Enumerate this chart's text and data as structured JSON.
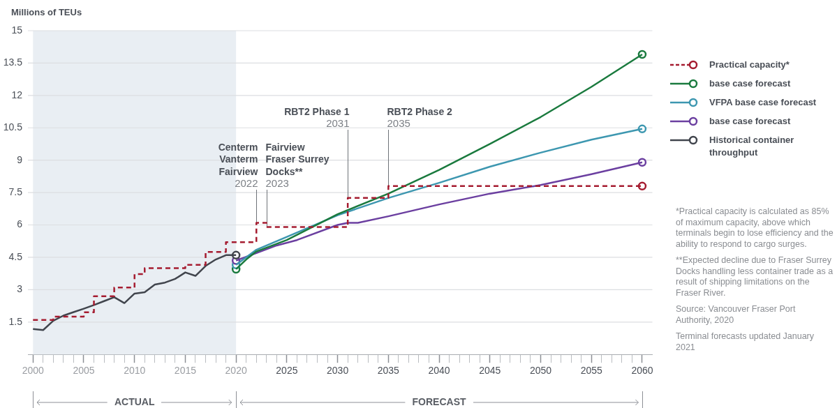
{
  "chart_data": {
    "type": "line",
    "ylabel": "Millions of TEUs",
    "xlim": [
      1999.5,
      2061
    ],
    "ylim": [
      0,
      15
    ],
    "xticks": [
      2000,
      {
        "value": 2001,
        "label": null
      },
      {
        "value": 2002,
        "label": null
      },
      {
        "value": 2003,
        "label": null
      },
      {
        "value": 2004,
        "label": null
      },
      2005,
      {
        "value": 2006,
        "label": null
      },
      {
        "value": 2007,
        "label": null
      },
      {
        "value": 2008,
        "label": null
      },
      {
        "value": 2009,
        "label": null
      },
      2010,
      {
        "value": 2011,
        "label": null
      },
      {
        "value": 2012,
        "label": null
      },
      {
        "value": 2013,
        "label": null
      },
      {
        "value": 2014,
        "label": null
      },
      2015,
      {
        "value": 2016,
        "label": null
      },
      {
        "value": 2017,
        "label": null
      },
      {
        "value": 2018,
        "label": null
      },
      {
        "value": 2019,
        "label": null
      },
      2020,
      {
        "value": 2021,
        "label": null
      },
      {
        "value": 2022,
        "label": null
      },
      {
        "value": 2023,
        "label": null
      },
      {
        "value": 2024,
        "label": null
      },
      2025,
      {
        "value": 2026,
        "label": null
      },
      {
        "value": 2027,
        "label": null
      },
      {
        "value": 2028,
        "label": null
      },
      {
        "value": 2029,
        "label": null
      },
      2030,
      {
        "value": 2031,
        "label": null
      },
      {
        "value": 2032,
        "label": null
      },
      {
        "value": 2033,
        "label": null
      },
      {
        "value": 2034,
        "label": null
      },
      2035,
      {
        "value": 2036,
        "label": null
      },
      {
        "value": 2037,
        "label": null
      },
      {
        "value": 2038,
        "label": null
      },
      {
        "value": 2039,
        "label": null
      },
      2040,
      {
        "value": 2041,
        "label": null
      },
      {
        "value": 2042,
        "label": null
      },
      {
        "value": 2043,
        "label": null
      },
      {
        "value": 2044,
        "label": null
      },
      2045,
      {
        "value": 2046,
        "label": null
      },
      {
        "value": 2047,
        "label": null
      },
      {
        "value": 2048,
        "label": null
      },
      {
        "value": 2049,
        "label": null
      },
      2050,
      {
        "value": 2051,
        "label": null
      },
      {
        "value": 2052,
        "label": null
      },
      {
        "value": 2053,
        "label": null
      },
      {
        "value": 2054,
        "label": null
      },
      2055,
      {
        "value": 2056,
        "label": null
      },
      {
        "value": 2057,
        "label": null
      },
      {
        "value": 2058,
        "label": null
      },
      {
        "value": 2059,
        "label": null
      },
      2060
    ],
    "yticks": [
      1.5,
      3,
      4.5,
      6,
      7.5,
      9,
      10.5,
      12,
      13.5,
      15
    ],
    "grid": "y",
    "legend": "right",
    "series": [
      {
        "name": "Practical capacity*",
        "type": "step",
        "line_style": "dashed",
        "color": "#a51c30",
        "x": [
          2000,
          2002,
          2005,
          2006,
          2008,
          2010,
          2011,
          2015,
          2017,
          2019,
          2022,
          2023,
          2031,
          2035,
          2060
        ],
        "values": [
          1.6,
          1.75,
          1.95,
          2.7,
          3.1,
          3.72,
          4.0,
          4.15,
          4.75,
          5.2,
          6.1,
          5.9,
          7.25,
          7.8,
          7.8
        ]
      },
      {
        "name": "base case forecast",
        "color": "#1a7a3e",
        "x": [
          2020,
          2021,
          2022,
          2025,
          2030,
          2035,
          2040,
          2045,
          2050,
          2055,
          2060
        ],
        "values": [
          3.95,
          4.4,
          4.77,
          5.3,
          6.5,
          7.45,
          8.55,
          9.75,
          11.0,
          12.4,
          13.9
        ]
      },
      {
        "name": "VFPA base case forecast",
        "color": "#3d97b0",
        "x": [
          2020,
          2022,
          2025,
          2030,
          2035,
          2040,
          2045,
          2050,
          2055,
          2060
        ],
        "values": [
          4.15,
          4.85,
          5.45,
          6.45,
          7.25,
          7.95,
          8.7,
          9.35,
          9.95,
          10.45
        ]
      },
      {
        "name": "base case forecast",
        "color": "#6b3fa0",
        "x": [
          2020,
          2022,
          2024,
          2026,
          2030,
          2031,
          2032,
          2035,
          2040,
          2045,
          2050,
          2055,
          2060
        ],
        "values": [
          4.35,
          4.7,
          5.05,
          5.3,
          6.0,
          6.1,
          6.1,
          6.4,
          6.95,
          7.45,
          7.85,
          8.35,
          8.9
        ]
      },
      {
        "name": "Historical container throughput",
        "color": "#41454d",
        "x": [
          2000,
          2001,
          2002,
          2003,
          2004,
          2005,
          2006,
          2007,
          2008,
          2009,
          2010,
          2011,
          2012,
          2013,
          2014,
          2015,
          2016,
          2017,
          2018,
          2019,
          2020
        ],
        "values": [
          1.18,
          1.13,
          1.56,
          1.8,
          1.96,
          2.12,
          2.29,
          2.47,
          2.65,
          2.38,
          2.82,
          2.88,
          3.24,
          3.33,
          3.5,
          3.8,
          3.64,
          4.1,
          4.4,
          4.6,
          4.6
        ]
      },
      {
        "type": "scatter",
        "marker": "circle",
        "x": [
          2060,
          2060,
          2060,
          2060,
          2020,
          2020,
          2020,
          2020
        ],
        "values": [
          7.8,
          13.9,
          10.45,
          8.9,
          3.95,
          4.15,
          4.35,
          4.6
        ],
        "colors": [
          "#a51c30",
          "#1a7a3e",
          "#3d97b0",
          "#6b3fa0",
          "#1a7a3e",
          "#3d97b0",
          "#6b3fa0",
          "#41454d"
        ]
      }
    ],
    "ref_lines": [
      {
        "axis": "x",
        "value": 2022,
        "label": "Centerm\nVanterm\nFairview\n2022"
      },
      {
        "axis": "x",
        "value": 2023,
        "label": "Fairview\nFraser Surrey\nDocks**\n2023"
      },
      {
        "axis": "x",
        "value": 2031,
        "label": "RBT2 Phase 1\n2031"
      },
      {
        "axis": "x",
        "value": 2035,
        "label": "RBT2 Phase 2\n2035"
      }
    ],
    "bands": [
      {
        "axis": "x",
        "from": 2000,
        "to": 2020,
        "color": "#e9eef3"
      }
    ],
    "annotations": [
      "ACTUAL",
      "FORECAST",
      "*Practical capacity is calculated as 85% of maximum capacity, above which terminals begin to lose efficiency and the ability to respond to cargo surges.",
      "**Expected decline due to Fraser Surrey Docks handling less container trade as a result of shipping limitations on the Fraser River.",
      "Source: Vancouver Fraser Port Authority, 2020",
      "Terminal forecasts updated January 2021"
    ]
  }
}
